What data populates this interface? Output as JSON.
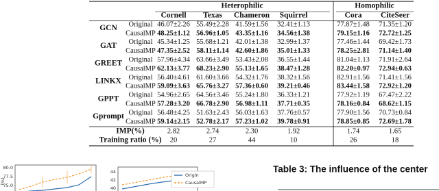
{
  "table": {
    "groups": [
      "Heterophilic",
      "Homophilic"
    ],
    "columns": [
      "Cornell",
      "Texas",
      "Chameron",
      "Squirrel",
      "Cora",
      "CiteSeer"
    ],
    "rows": [
      {
        "method": "GCN",
        "variants": [
          {
            "name": "Original",
            "cells": [
              "46.07±2.26",
              "55.49±2.28",
              "41.59±1.56",
              "32.41±1.13",
              "77.87±1.48",
              "71.35±1.20"
            ]
          },
          {
            "name": "CausalMP",
            "cells": [
              "48.25±1.12",
              "56.96±1.05",
              "43.35±1.16",
              "34.56±1.38",
              "79.15±1.16",
              "72.72±1.25"
            ]
          }
        ]
      },
      {
        "method": "GAT",
        "variants": [
          {
            "name": "Original",
            "cells": [
              "45.34±1.25",
              "55.68±1.21",
              "42.01±1.38",
              "32.99±1.37",
              "77.46±1.44",
              "69.42±1.73"
            ]
          },
          {
            "name": "CausalMP",
            "cells": [
              "47.35±2.52",
              "58.11±1.14",
              "42.60±1.86",
              "35.01±1.33",
              "78.25±2.81",
              "71.14±1.40"
            ]
          }
        ]
      },
      {
        "method": "GREET",
        "variants": [
          {
            "name": "Original",
            "cells": [
              "57.96±4.34",
              "63.66±3.49",
              "53.43±2.08",
              "36.55±1.44",
              "81.04±1.13",
              "71.91±2.64"
            ]
          },
          {
            "name": "CausalMP",
            "cells": [
              "62.13±3.77",
              "68.23±2.90",
              "55.13±1.65",
              "38.47±1.28",
              "82.20±0.97",
              "72.94±0.63"
            ]
          }
        ]
      },
      {
        "method": "LINKX",
        "variants": [
          {
            "name": "Original",
            "cells": [
              "56.40±4.61",
              "61.60±3.66",
              "54.32±1.76",
              "38.32±1.56",
              "82.91±1.56",
              "71.41±1.56"
            ]
          },
          {
            "name": "CausalMP",
            "cells": [
              "59.09±3.63",
              "65.76±3.27",
              "57.36±0.60",
              "39.21±0.46",
              "83.44±1.58",
              "72.92±1.20"
            ]
          }
        ]
      },
      {
        "method": "GPPT",
        "variants": [
          {
            "name": "Original",
            "cells": [
              "54.96±2.65",
              "64.56±3.46",
              "55.24±1.80",
              "36.33±1.21",
              "77.92±1.19",
              "67.47±2.22"
            ]
          },
          {
            "name": "CausalMP",
            "cells": [
              "57.28±3.20",
              "66.78±2.90",
              "56.98±1.11",
              "37.71±0.35",
              "78.16±0.84",
              "68.62±1.15"
            ]
          }
        ]
      },
      {
        "method": "Gprompt",
        "variants": [
          {
            "name": "Original",
            "cells": [
              "56.48±4.25",
              "51.63±2.43",
              "56.03±1.63",
              "37.76±0.57",
              "77.90±1.56",
              "70.73±0.84"
            ]
          },
          {
            "name": "CausalMP",
            "cells": [
              "59.14±2.15",
              "52.78±2.17",
              "57.23±1.02",
              "39.78±0.91",
              "78.85±0.85",
              "72.69±1.78"
            ]
          }
        ]
      }
    ],
    "summary": [
      {
        "label": "IMP(%)",
        "cells": [
          "2.82",
          "2.74",
          "2.30",
          "1.92",
          "1.74",
          "1.65"
        ]
      },
      {
        "label": "Training ratio (%)",
        "cells": [
          "20",
          "27",
          "44",
          "10",
          "26",
          "18"
        ]
      }
    ]
  },
  "figures": {
    "left_yticks": [
      "80.0",
      "77.5",
      "75.0"
    ],
    "left_ylabel": "(%)",
    "mid_yticks": [
      "44",
      "42",
      "40"
    ],
    "legend": [
      "Origin",
      "CausalMP"
    ]
  },
  "caption": "Table 3: The influence of the center"
}
